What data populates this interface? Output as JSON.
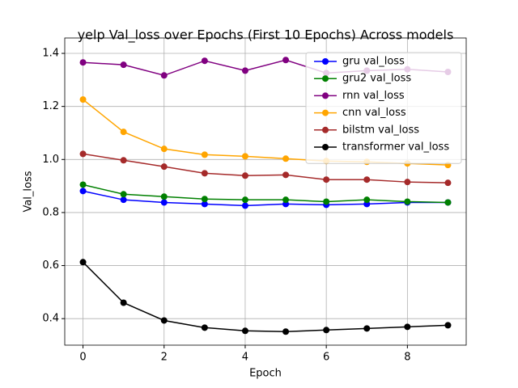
{
  "chart_data": {
    "type": "line",
    "title": "yelp Val_loss over Epochs (First 10 Epochs) Across models",
    "x_label": "Epoch",
    "y_label": "Val_loss",
    "x": [
      0,
      1,
      2,
      3,
      4,
      5,
      6,
      7,
      8,
      9
    ],
    "series": [
      {
        "name": "gru val_loss",
        "color": "#0000ff",
        "values": [
          0.881,
          0.848,
          0.838,
          0.832,
          0.826,
          0.832,
          0.829,
          0.832,
          0.838,
          0.838
        ]
      },
      {
        "name": "gru2 val_loss",
        "color": "#008000",
        "values": [
          0.905,
          0.869,
          0.86,
          0.851,
          0.848,
          0.848,
          0.841,
          0.848,
          0.841,
          0.838
        ]
      },
      {
        "name": "rnn val_loss",
        "color": "#800080",
        "values": [
          1.366,
          1.357,
          1.317,
          1.372,
          1.335,
          1.375,
          1.326,
          1.335,
          1.34,
          1.33
        ]
      },
      {
        "name": "cnn val_loss",
        "color": "#ffa500",
        "values": [
          1.226,
          1.104,
          1.04,
          1.018,
          1.012,
          1.003,
          0.994,
          0.991,
          0.985,
          0.979
        ]
      },
      {
        "name": "bilstm val_loss",
        "color": "#a52a2a",
        "values": [
          1.021,
          0.997,
          0.973,
          0.948,
          0.939,
          0.942,
          0.924,
          0.924,
          0.915,
          0.912
        ]
      },
      {
        "name": "transformer val_loss",
        "color": "#000000",
        "values": [
          0.613,
          0.46,
          0.393,
          0.366,
          0.354,
          0.351,
          0.357,
          0.363,
          0.369,
          0.375
        ]
      }
    ],
    "xlim": [
      -0.45,
      9.45
    ],
    "xticks": [
      0,
      2,
      4,
      6,
      8
    ],
    "ylim": [
      0.3,
      1.458
    ],
    "yticks": [
      0.4,
      0.6,
      0.8,
      {
        "value": 1.0,
        "label": "1.0"
      },
      1.2,
      1.4
    ],
    "grid": true,
    "legend": "upper right"
  }
}
